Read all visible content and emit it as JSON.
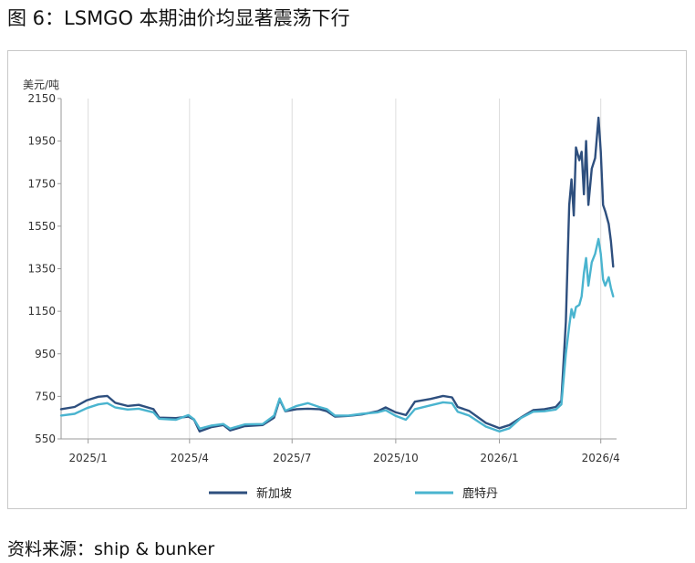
{
  "figure": {
    "title": "图 6：LSMGO 本期油价均显著震荡下行",
    "source": "资料来源：ship & bunker"
  },
  "chart_data": {
    "type": "line",
    "title": "",
    "xlabel": "",
    "ylabel": "美元/吨",
    "ylim": [
      550,
      2150
    ],
    "yticks": [
      550,
      750,
      950,
      1150,
      1350,
      1550,
      1750,
      1950,
      2150
    ],
    "xlim": [
      "2024-12-08",
      "2026-04-15"
    ],
    "xticks": [
      {
        "date": "2025-01-01",
        "label": "2025/1"
      },
      {
        "date": "2025-04-01",
        "label": "2025/4"
      },
      {
        "date": "2025-07-01",
        "label": "2025/7"
      },
      {
        "date": "2025-10-01",
        "label": "2025/10"
      },
      {
        "date": "2026-01-01",
        "label": "2026/1"
      },
      {
        "date": "2026-04-01",
        "label": "2026/4"
      }
    ],
    "grid": "vertical",
    "legend": "bottom",
    "series": [
      {
        "name": "新加坡",
        "color": "#2e4f7e",
        "points": [
          [
            "2024-12-08",
            690
          ],
          [
            "2024-12-20",
            700
          ],
          [
            "2024-12-31",
            732
          ],
          [
            "2025-01-10",
            748
          ],
          [
            "2025-01-18",
            752
          ],
          [
            "2025-01-25",
            720
          ],
          [
            "2025-02-05",
            705
          ],
          [
            "2025-02-15",
            710
          ],
          [
            "2025-02-28",
            690
          ],
          [
            "2025-03-05",
            650
          ],
          [
            "2025-03-20",
            648
          ],
          [
            "2025-03-31",
            655
          ],
          [
            "2025-04-05",
            640
          ],
          [
            "2025-04-10",
            585
          ],
          [
            "2025-04-20",
            605
          ],
          [
            "2025-05-01",
            615
          ],
          [
            "2025-05-07",
            590
          ],
          [
            "2025-05-20",
            610
          ],
          [
            "2025-06-05",
            615
          ],
          [
            "2025-06-15",
            650
          ],
          [
            "2025-06-20",
            735
          ],
          [
            "2025-06-25",
            680
          ],
          [
            "2025-07-05",
            690
          ],
          [
            "2025-07-15",
            692
          ],
          [
            "2025-07-25",
            690
          ],
          [
            "2025-08-01",
            680
          ],
          [
            "2025-08-08",
            655
          ],
          [
            "2025-08-20",
            658
          ],
          [
            "2025-09-01",
            665
          ],
          [
            "2025-09-15",
            680
          ],
          [
            "2025-09-22",
            698
          ],
          [
            "2025-10-01",
            675
          ],
          [
            "2025-10-10",
            662
          ],
          [
            "2025-10-18",
            725
          ],
          [
            "2025-11-01",
            738
          ],
          [
            "2025-11-12",
            752
          ],
          [
            "2025-11-20",
            745
          ],
          [
            "2025-11-25",
            700
          ],
          [
            "2025-12-05",
            682
          ],
          [
            "2025-12-20",
            625
          ],
          [
            "2026-01-01",
            600
          ],
          [
            "2026-01-10",
            615
          ],
          [
            "2026-01-20",
            650
          ],
          [
            "2026-01-31",
            685
          ],
          [
            "2026-02-10",
            690
          ],
          [
            "2026-02-20",
            700
          ],
          [
            "2026-02-25",
            730
          ],
          [
            "2026-03-01",
            1100
          ],
          [
            "2026-03-04",
            1650
          ],
          [
            "2026-03-06",
            1770
          ],
          [
            "2026-03-08",
            1600
          ],
          [
            "2026-03-10",
            1920
          ],
          [
            "2026-03-13",
            1860
          ],
          [
            "2026-03-15",
            1900
          ],
          [
            "2026-03-17",
            1700
          ],
          [
            "2026-03-19",
            1950
          ],
          [
            "2026-03-21",
            1650
          ],
          [
            "2026-03-24",
            1820
          ],
          [
            "2026-03-27",
            1870
          ],
          [
            "2026-03-30",
            2060
          ],
          [
            "2026-04-01",
            1900
          ],
          [
            "2026-04-03",
            1650
          ],
          [
            "2026-04-05",
            1620
          ],
          [
            "2026-04-08",
            1560
          ],
          [
            "2026-04-10",
            1480
          ],
          [
            "2026-04-12",
            1360
          ]
        ]
      },
      {
        "name": "鹿特丹",
        "color": "#4ab4cf",
        "points": [
          [
            "2024-12-08",
            660
          ],
          [
            "2024-12-20",
            668
          ],
          [
            "2024-12-31",
            695
          ],
          [
            "2025-01-10",
            712
          ],
          [
            "2025-01-18",
            718
          ],
          [
            "2025-01-25",
            698
          ],
          [
            "2025-02-05",
            688
          ],
          [
            "2025-02-15",
            692
          ],
          [
            "2025-02-28",
            675
          ],
          [
            "2025-03-05",
            645
          ],
          [
            "2025-03-20",
            640
          ],
          [
            "2025-03-31",
            662
          ],
          [
            "2025-04-05",
            642
          ],
          [
            "2025-04-10",
            598
          ],
          [
            "2025-04-20",
            612
          ],
          [
            "2025-05-01",
            620
          ],
          [
            "2025-05-07",
            598
          ],
          [
            "2025-05-20",
            618
          ],
          [
            "2025-06-05",
            620
          ],
          [
            "2025-06-15",
            660
          ],
          [
            "2025-06-20",
            740
          ],
          [
            "2025-06-25",
            682
          ],
          [
            "2025-07-05",
            705
          ],
          [
            "2025-07-15",
            718
          ],
          [
            "2025-07-25",
            700
          ],
          [
            "2025-08-01",
            690
          ],
          [
            "2025-08-08",
            660
          ],
          [
            "2025-08-20",
            660
          ],
          [
            "2025-09-01",
            668
          ],
          [
            "2025-09-15",
            675
          ],
          [
            "2025-09-22",
            685
          ],
          [
            "2025-10-01",
            658
          ],
          [
            "2025-10-10",
            640
          ],
          [
            "2025-10-18",
            690
          ],
          [
            "2025-11-01",
            708
          ],
          [
            "2025-11-12",
            722
          ],
          [
            "2025-11-20",
            718
          ],
          [
            "2025-11-25",
            678
          ],
          [
            "2025-12-05",
            660
          ],
          [
            "2025-12-20",
            608
          ],
          [
            "2026-01-01",
            585
          ],
          [
            "2026-01-10",
            600
          ],
          [
            "2026-01-20",
            648
          ],
          [
            "2026-01-31",
            678
          ],
          [
            "2026-02-10",
            680
          ],
          [
            "2026-02-20",
            688
          ],
          [
            "2026-02-25",
            712
          ],
          [
            "2026-03-01",
            950
          ],
          [
            "2026-03-04",
            1080
          ],
          [
            "2026-03-06",
            1160
          ],
          [
            "2026-03-08",
            1120
          ],
          [
            "2026-03-10",
            1170
          ],
          [
            "2026-03-13",
            1180
          ],
          [
            "2026-03-15",
            1220
          ],
          [
            "2026-03-17",
            1330
          ],
          [
            "2026-03-19",
            1400
          ],
          [
            "2026-03-21",
            1270
          ],
          [
            "2026-03-24",
            1380
          ],
          [
            "2026-03-27",
            1420
          ],
          [
            "2026-03-30",
            1490
          ],
          [
            "2026-04-01",
            1420
          ],
          [
            "2026-04-03",
            1300
          ],
          [
            "2026-04-05",
            1270
          ],
          [
            "2026-04-08",
            1310
          ],
          [
            "2026-04-10",
            1260
          ],
          [
            "2026-04-12",
            1220
          ]
        ]
      }
    ]
  }
}
